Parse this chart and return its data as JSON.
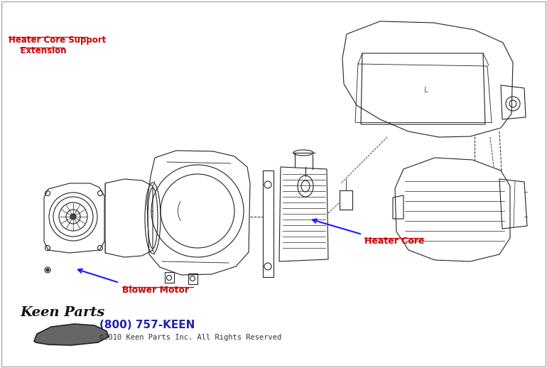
{
  "bg_color": "#ffffff",
  "label_blower_motor": "Blower Motor",
  "label_heater_core": "Heater Core",
  "label_support_line1": "Heater Core Support",
  "label_support_line2": "    Extension",
  "label_phone": "(800) 757-KEEN",
  "label_copyright": "©2010 Keen Parts Inc. All Rights Reserved",
  "label_color_red": "#cc0000",
  "label_color_blue": "#2222aa",
  "arrow_color": "#1a1aff",
  "line_color": "#222222",
  "fig_width": 7.7,
  "fig_height": 5.18,
  "dpi": 100
}
